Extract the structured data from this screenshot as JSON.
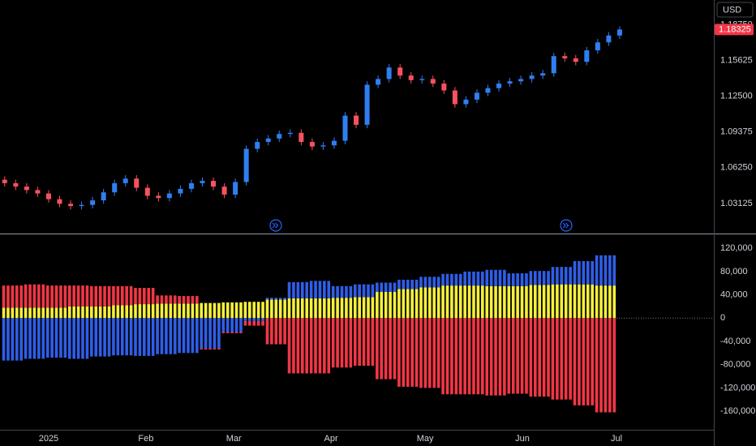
{
  "chart_data": [
    {
      "type": "candlestick",
      "currency": "USD",
      "x": [
        -14,
        -10.5,
        -7,
        -3.5,
        0,
        3.5,
        7,
        10.5,
        14,
        17.5,
        21,
        24.5,
        28,
        31.5,
        35,
        38.5,
        42,
        45.5,
        49,
        52.5,
        56,
        59.5,
        63,
        66.5,
        70,
        73.5,
        77,
        80.5,
        84,
        87.5,
        91,
        94.5,
        98,
        101.5,
        105,
        108.5,
        112,
        115.5,
        119,
        122.5,
        126,
        129.5,
        133,
        136.5,
        140,
        143.5,
        147,
        150.5,
        154,
        157.5,
        161,
        164.5,
        168,
        171.5,
        175,
        178.5,
        182
      ],
      "open": [
        1.052,
        1.049,
        1.046,
        1.043,
        1.04,
        1.035,
        1.031,
        1.029,
        1.03,
        1.034,
        1.041,
        1.049,
        1.053,
        1.045,
        1.038,
        1.036,
        1.04,
        1.044,
        1.049,
        1.051,
        1.046,
        1.039,
        1.05,
        1.079,
        1.085,
        1.088,
        1.092,
        1.093,
        1.085,
        1.081,
        1.082,
        1.086,
        1.108,
        1.1,
        1.135,
        1.14,
        1.15,
        1.143,
        1.139,
        1.14,
        1.136,
        1.13,
        1.118,
        1.122,
        1.128,
        1.132,
        1.136,
        1.138,
        1.14,
        1.143,
        1.145,
        1.16,
        1.158,
        1.155,
        1.165,
        1.172,
        1.178
      ],
      "high": [
        1.055,
        1.052,
        1.049,
        1.046,
        1.043,
        1.038,
        1.034,
        1.033,
        1.037,
        1.044,
        1.052,
        1.056,
        1.056,
        1.048,
        1.041,
        1.043,
        1.047,
        1.052,
        1.054,
        1.054,
        1.049,
        1.053,
        1.082,
        1.088,
        1.091,
        1.095,
        1.096,
        1.096,
        1.088,
        1.085,
        1.089,
        1.111,
        1.111,
        1.138,
        1.143,
        1.153,
        1.153,
        1.146,
        1.143,
        1.143,
        1.139,
        1.133,
        1.125,
        1.131,
        1.135,
        1.139,
        1.141,
        1.143,
        1.146,
        1.148,
        1.163,
        1.163,
        1.161,
        1.168,
        1.175,
        1.181,
        1.186
      ],
      "low": [
        1.046,
        1.043,
        1.04,
        1.037,
        1.032,
        1.028,
        1.026,
        1.026,
        1.027,
        1.031,
        1.038,
        1.046,
        1.042,
        1.035,
        1.033,
        1.033,
        1.037,
        1.041,
        1.046,
        1.043,
        1.036,
        1.036,
        1.047,
        1.076,
        1.082,
        1.085,
        1.089,
        1.082,
        1.078,
        1.078,
        1.079,
        1.083,
        1.097,
        1.097,
        1.132,
        1.137,
        1.14,
        1.136,
        1.136,
        1.133,
        1.127,
        1.115,
        1.115,
        1.119,
        1.125,
        1.129,
        1.133,
        1.135,
        1.137,
        1.14,
        1.142,
        1.155,
        1.152,
        1.152,
        1.162,
        1.169,
        1.175
      ],
      "close": [
        1.049,
        1.046,
        1.043,
        1.04,
        1.035,
        1.031,
        1.029,
        1.03,
        1.034,
        1.041,
        1.049,
        1.053,
        1.045,
        1.038,
        1.036,
        1.04,
        1.044,
        1.049,
        1.051,
        1.046,
        1.039,
        1.05,
        1.079,
        1.085,
        1.088,
        1.092,
        1.093,
        1.085,
        1.081,
        1.082,
        1.086,
        1.108,
        1.1,
        1.135,
        1.14,
        1.15,
        1.143,
        1.139,
        1.14,
        1.136,
        1.13,
        1.118,
        1.122,
        1.128,
        1.132,
        1.136,
        1.138,
        1.14,
        1.143,
        1.145,
        1.16,
        1.158,
        1.155,
        1.165,
        1.172,
        1.178,
        1.18325
      ],
      "up_color": "#2f7ff0",
      "down_color": "#f7525f",
      "last_color": "#f23645",
      "xlim": [
        -15.5,
        212
      ],
      "ylim": [
        1.005,
        1.209
      ],
      "yticks": [
        1.03125,
        {
          "value": 1.0625,
          "label": "1.06250"
        },
        1.09375,
        {
          "value": 1.125,
          "label": "1.12500"
        },
        1.15625,
        {
          "value": 1.1875,
          "label": "1.18750"
        }
      ]
    },
    {
      "type": "bar",
      "stacked": true,
      "x": [
        -15,
        -8,
        -1,
        6,
        13,
        20,
        27,
        34,
        41,
        48,
        55,
        62,
        69,
        76,
        83,
        90,
        97,
        104,
        111,
        118,
        125,
        132,
        139,
        146,
        153,
        160,
        167,
        174
      ],
      "series": [
        {
          "color": "#f5f03c",
          "values": [
            18000,
            18000,
            18000,
            20000,
            20000,
            22000,
            24000,
            25000,
            25000,
            26000,
            27000,
            28000,
            32000,
            34000,
            34000,
            35000,
            36000,
            45000,
            50000,
            53000,
            56000,
            56000,
            55000,
            55000,
            57000,
            58000,
            58000,
            56000
          ]
        },
        {
          "color": "#2f5ee8",
          "values": [
            -73000,
            -70000,
            -68000,
            -70000,
            -66000,
            -64000,
            -65000,
            -62000,
            -60000,
            -52000,
            -24000,
            -5000,
            3000,
            28000,
            30000,
            20000,
            22000,
            16000,
            16000,
            18000,
            20000,
            24000,
            28000,
            22000,
            24000,
            30000,
            40000,
            52000
          ]
        },
        {
          "color": "#f23645",
          "values": [
            38000,
            40000,
            38000,
            36000,
            35000,
            33000,
            28000,
            14000,
            13000,
            -2000,
            -2000,
            -8000,
            -45000,
            -95000,
            -95000,
            -85000,
            -82000,
            -105000,
            -118000,
            -120000,
            -131000,
            -131000,
            -133000,
            -130000,
            -135000,
            -140000,
            -150000,
            -162000
          ]
        }
      ],
      "xlim": [
        -15.5,
        212
      ],
      "ylim": [
        -192000,
        144000
      ],
      "yticks": [
        {
          "value": 120000,
          "label": "120,000"
        },
        {
          "value": 80000,
          "label": "80,000"
        },
        {
          "value": 40000,
          "label": "40,000"
        },
        0,
        {
          "value": -40000,
          "label": "-40,000"
        },
        {
          "value": -80000,
          "label": "-80,000"
        },
        {
          "value": -120000,
          "label": "-120,000"
        },
        {
          "value": -160000,
          "label": "-160,000"
        }
      ],
      "xticks": [
        {
          "value": 0,
          "label": "2025"
        },
        {
          "value": 31,
          "label": "Feb"
        },
        {
          "value": 59,
          "label": "Mar"
        },
        {
          "value": 90,
          "label": "Apr"
        },
        {
          "value": 120,
          "label": "May"
        },
        {
          "value": 151,
          "label": "Jun"
        },
        {
          "value": 181,
          "label": "Jul"
        }
      ]
    }
  ]
}
